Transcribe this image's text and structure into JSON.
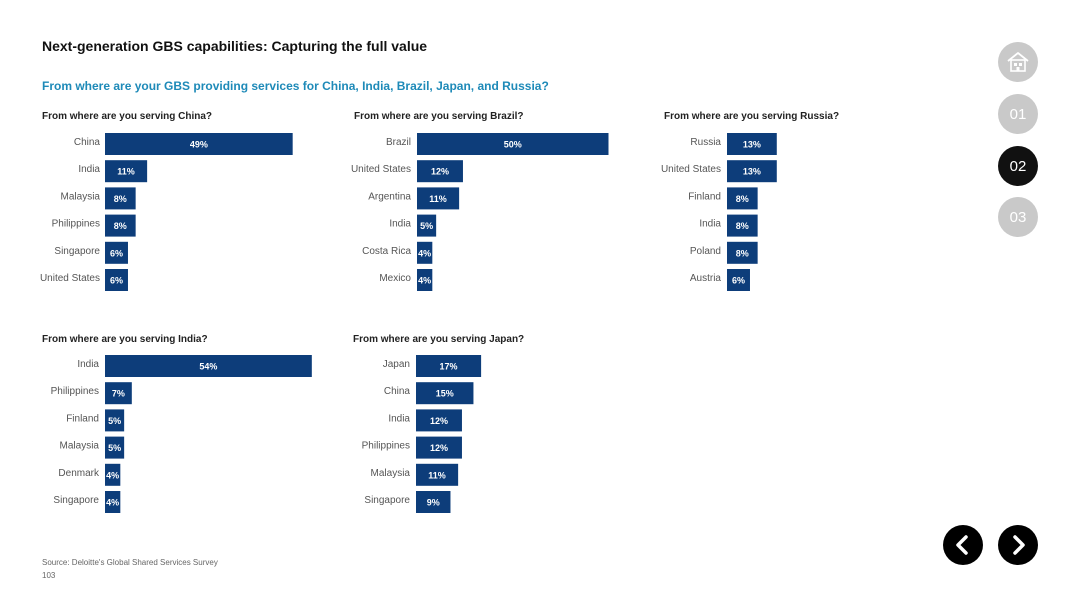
{
  "header": {
    "title": "Next-generation GBS capabilities: Capturing the full value",
    "subtitle": "From where are your GBS providing services for China, India, Brazil, Japan, and Russia?"
  },
  "footer": {
    "source": "Source: Deloitte's Global Shared Services Survey",
    "page_number": "103"
  },
  "nav": {
    "home_icon": "home-icon",
    "items": [
      "01",
      "02",
      "03"
    ],
    "active": "02",
    "prev_icon": "chevron-left-icon",
    "next_icon": "chevron-right-icon"
  },
  "colors": {
    "bar": "#0d3d7a",
    "subtitle": "#1e8ab8",
    "nav_inactive": "#c9c9c9",
    "nav_active": "#111111"
  },
  "chart_data": [
    {
      "type": "bar",
      "orientation": "horizontal",
      "title": "From where are you serving China?",
      "categories": [
        "China",
        "India",
        "Malaysia",
        "Philippines",
        "Singapore",
        "United States"
      ],
      "values": [
        49,
        11,
        8,
        8,
        6,
        6
      ],
      "labels": [
        "49%",
        "11%",
        "8%",
        "8%",
        "6%",
        "6%"
      ],
      "unit": "%"
    },
    {
      "type": "bar",
      "orientation": "horizontal",
      "title": "From where are you serving Brazil?",
      "categories": [
        "Brazil",
        "United States",
        "Argentina",
        "India",
        "Costa Rica",
        "Mexico"
      ],
      "values": [
        50,
        12,
        11,
        5,
        4,
        4
      ],
      "labels": [
        "50%",
        "12%",
        "11%",
        "5%",
        "4%",
        "4%"
      ],
      "unit": "%"
    },
    {
      "type": "bar",
      "orientation": "horizontal",
      "title": "From where are you serving Russia?",
      "categories": [
        "Russia",
        "United States",
        "Finland",
        "India",
        "Poland",
        "Austria"
      ],
      "values": [
        13,
        13,
        8,
        8,
        8,
        6
      ],
      "labels": [
        "13%",
        "13%",
        "8%",
        "8%",
        "8%",
        "6%"
      ],
      "unit": "%"
    },
    {
      "type": "bar",
      "orientation": "horizontal",
      "title": "From where are you serving India?",
      "categories": [
        "India",
        "Philippines",
        "Finland",
        "Malaysia",
        "Denmark",
        "Singapore"
      ],
      "values": [
        54,
        7,
        5,
        5,
        4,
        4
      ],
      "labels": [
        "54%",
        "7%",
        "5%",
        "5%",
        "4%",
        "4%"
      ],
      "unit": "%"
    },
    {
      "type": "bar",
      "orientation": "horizontal",
      "title": "From where are you serving Japan?",
      "categories": [
        "Japan",
        "China",
        "India",
        "Philippines",
        "Malaysia",
        "Singapore"
      ],
      "values": [
        17,
        15,
        12,
        12,
        11,
        9
      ],
      "labels": [
        "17%",
        "15%",
        "12%",
        "12%",
        "11%",
        "9%"
      ],
      "unit": "%"
    }
  ]
}
